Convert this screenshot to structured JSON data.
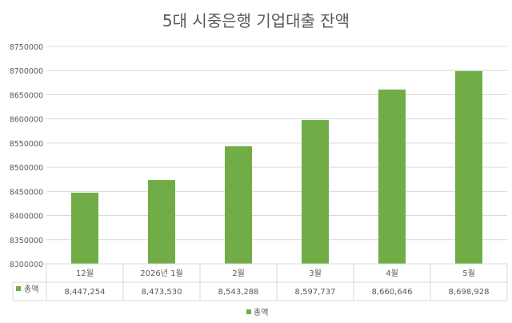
{
  "chart_data": {
    "type": "bar",
    "title": "5대 시중은행 기업대출 잔액",
    "categories": [
      "12월",
      "2026년 1월",
      "2월",
      "3월",
      "4월",
      "5월"
    ],
    "series": [
      {
        "name": "총액",
        "values": [
          8447254,
          8473530,
          8543288,
          8597737,
          8660646,
          8698928
        ],
        "value_labels": [
          "8,447,254",
          "8,473,530",
          "8,543,288",
          "8,597,737",
          "8,660,646",
          "8,698,928"
        ]
      }
    ],
    "ylim": [
      8300000,
      8750000
    ],
    "y_ticks": [
      8300000,
      8350000,
      8400000,
      8450000,
      8500000,
      8550000,
      8600000,
      8650000,
      8700000,
      8750000
    ],
    "y_tick_labels": [
      "8300000",
      "8350000",
      "8400000",
      "8450000",
      "8500000",
      "8550000",
      "8600000",
      "8650000",
      "8700000",
      "8750000"
    ],
    "grid": true,
    "data_table": true,
    "legend": "bottom",
    "colors": {
      "bar": "#70ad47",
      "grid": "#d9d9d9",
      "text": "#595959",
      "title": "#595959"
    }
  }
}
